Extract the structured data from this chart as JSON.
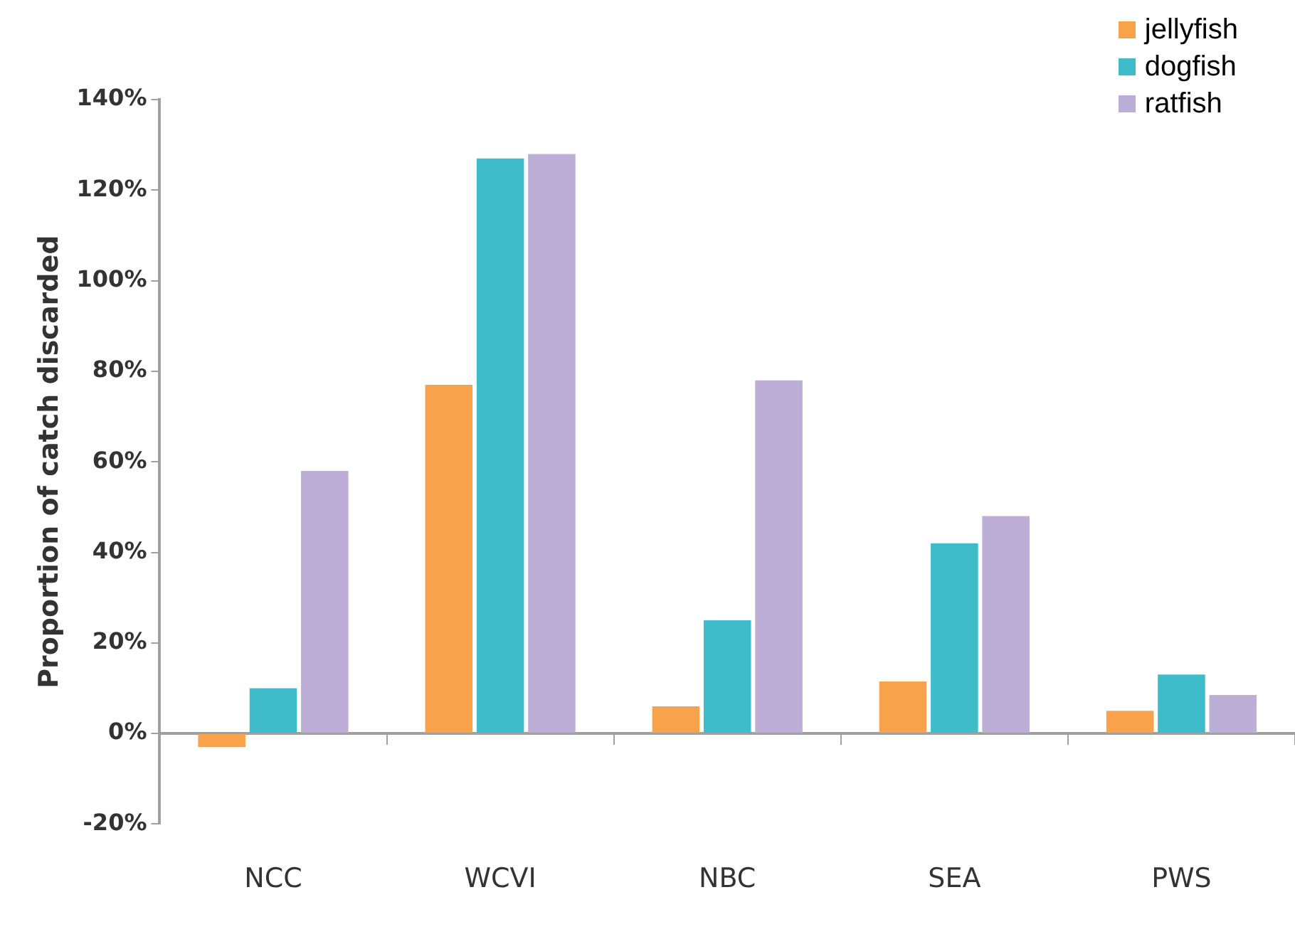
{
  "chart_data": {
    "type": "bar",
    "ylabel": "Proportion of catch discarded",
    "categories": [
      "NCC",
      "WCVI",
      "NBC",
      "SEA",
      "PWS"
    ],
    "series": [
      {
        "name": "jellyfish",
        "color": "#f9a24c",
        "values": [
          -3,
          77,
          6,
          11.5,
          5
        ]
      },
      {
        "name": "dogfish",
        "color": "#3fbcca",
        "values": [
          10,
          127,
          25,
          42,
          13
        ]
      },
      {
        "name": "ratfish",
        "color": "#bcaed6",
        "values": [
          58,
          128,
          78,
          48,
          8.5
        ]
      }
    ],
    "ylim": [
      -20,
      140
    ],
    "yticks": [
      {
        "value": -20,
        "label": "-20%"
      },
      {
        "value": 0,
        "label": "0%"
      },
      {
        "value": 20,
        "label": "20%"
      },
      {
        "value": 40,
        "label": "40%"
      },
      {
        "value": 60,
        "label": "60%"
      },
      {
        "value": 80,
        "label": "80%"
      },
      {
        "value": 100,
        "label": "100%"
      },
      {
        "value": 120,
        "label": "120%"
      },
      {
        "value": 140,
        "label": "140%"
      }
    ],
    "legend": "top right"
  }
}
